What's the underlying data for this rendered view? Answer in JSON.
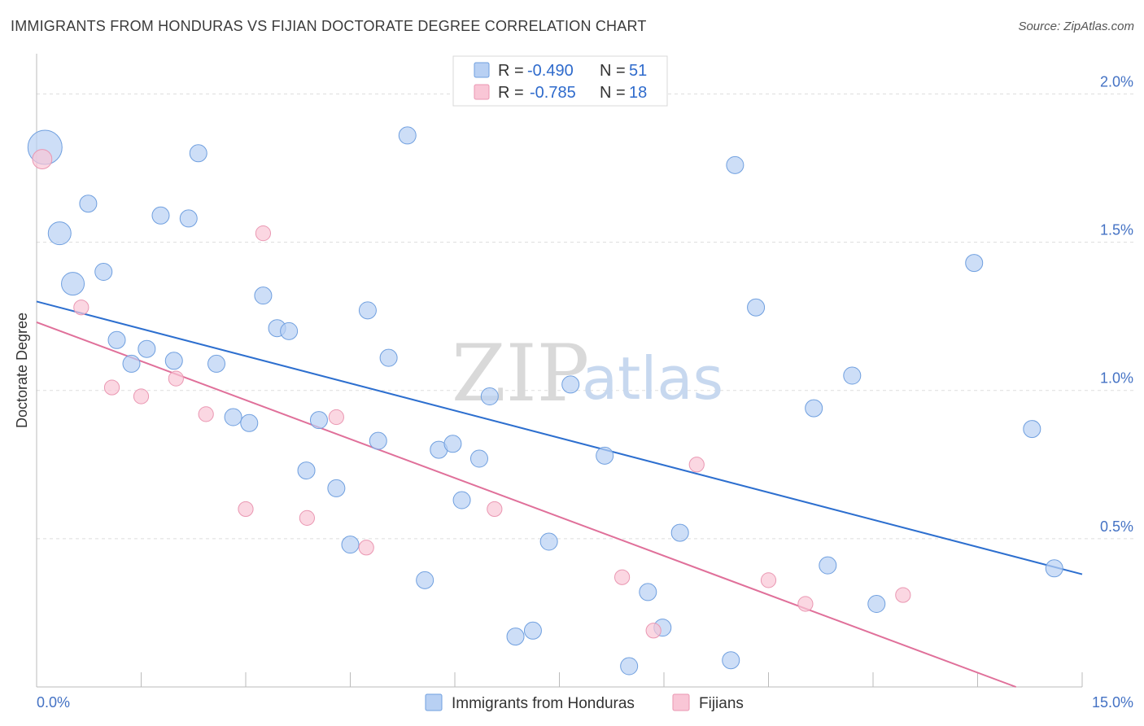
{
  "header": {
    "title": "IMMIGRANTS FROM HONDURAS VS FIJIAN DOCTORATE DEGREE CORRELATION CHART",
    "source": "Source: ZipAtlas.com"
  },
  "watermark": {
    "zip": "ZIP",
    "atlas": "atlas"
  },
  "colors": {
    "blue_fill": "#b8d0f3",
    "blue_stroke": "#6f9fdf",
    "blue_line": "#2d6fcf",
    "pink_fill": "#f9c6d6",
    "pink_stroke": "#ea97b2",
    "pink_line": "#e0709a",
    "grid": "#dddddd",
    "tick_text": "#4472c4"
  },
  "legend": {
    "items": [
      {
        "r_label": "R = ",
        "r_value": "-0.490",
        "n_label": "N = ",
        "n_value": "51",
        "color": "#b8d0f3"
      },
      {
        "r_label": "R = ",
        "r_value": "-0.785",
        "n_label": "N = ",
        "n_value": "18",
        "color": "#f9c6d6"
      }
    ]
  },
  "chart_data": {
    "type": "scatter",
    "title": "IMMIGRANTS FROM HONDURAS VS FIJIAN DOCTORATE DEGREE CORRELATION CHART",
    "xlabel": "",
    "ylabel": "Doctorate Degree",
    "xlim": [
      0,
      15
    ],
    "ylim": [
      0,
      2.1
    ],
    "x_tick_labels": [
      "0.0%",
      "15.0%"
    ],
    "y_ticks": [
      {
        "value": 0.5,
        "label": "0.5%"
      },
      {
        "value": 1.0,
        "label": "1.0%"
      },
      {
        "value": 1.5,
        "label": "1.5%"
      },
      {
        "value": 2.0,
        "label": "2.0%"
      }
    ],
    "x_minor_ticks": [
      0,
      1.5,
      3,
      4.5,
      6,
      7.5,
      9,
      10.5,
      12,
      13.5,
      15
    ],
    "grid": true,
    "legend_position": "top-center",
    "series": [
      {
        "name": "Immigrants from Honduras",
        "color": "#b8d0f3",
        "trend": {
          "x": [
            0,
            15
          ],
          "y": [
            1.3,
            0.38
          ]
        },
        "points": [
          {
            "x": 0.12,
            "y": 1.82,
            "s": 3
          },
          {
            "x": 0.33,
            "y": 1.53,
            "s": 2
          },
          {
            "x": 0.52,
            "y": 1.36,
            "s": 2
          },
          {
            "x": 0.74,
            "y": 1.63,
            "s": 1.5
          },
          {
            "x": 0.96,
            "y": 1.4,
            "s": 1.5
          },
          {
            "x": 1.15,
            "y": 1.17,
            "s": 1.5
          },
          {
            "x": 1.36,
            "y": 1.09,
            "s": 1.5
          },
          {
            "x": 1.58,
            "y": 1.14,
            "s": 1.5
          },
          {
            "x": 1.78,
            "y": 1.59,
            "s": 1.5
          },
          {
            "x": 1.97,
            "y": 1.1,
            "s": 1.5
          },
          {
            "x": 2.18,
            "y": 1.58,
            "s": 1.5
          },
          {
            "x": 2.32,
            "y": 1.8,
            "s": 1.5
          },
          {
            "x": 2.58,
            "y": 1.09,
            "s": 1.5
          },
          {
            "x": 2.82,
            "y": 0.91,
            "s": 1.5
          },
          {
            "x": 3.05,
            "y": 0.89,
            "s": 1.5
          },
          {
            "x": 3.25,
            "y": 1.32,
            "s": 1.5
          },
          {
            "x": 3.45,
            "y": 1.21,
            "s": 1.5
          },
          {
            "x": 3.62,
            "y": 1.2,
            "s": 1.5
          },
          {
            "x": 3.87,
            "y": 0.73,
            "s": 1.5
          },
          {
            "x": 4.05,
            "y": 0.9,
            "s": 1.5
          },
          {
            "x": 4.3,
            "y": 0.67,
            "s": 1.5
          },
          {
            "x": 4.5,
            "y": 0.48,
            "s": 1.5
          },
          {
            "x": 4.75,
            "y": 1.27,
            "s": 1.5
          },
          {
            "x": 4.9,
            "y": 0.83,
            "s": 1.5
          },
          {
            "x": 5.05,
            "y": 1.11,
            "s": 1.5
          },
          {
            "x": 5.32,
            "y": 1.86,
            "s": 1.5
          },
          {
            "x": 5.57,
            "y": 0.36,
            "s": 1.5
          },
          {
            "x": 5.77,
            "y": 0.8,
            "s": 1.5
          },
          {
            "x": 5.97,
            "y": 0.82,
            "s": 1.5
          },
          {
            "x": 6.1,
            "y": 0.63,
            "s": 1.5
          },
          {
            "x": 6.35,
            "y": 0.77,
            "s": 1.5
          },
          {
            "x": 6.5,
            "y": 0.98,
            "s": 1.5
          },
          {
            "x": 6.87,
            "y": 0.17,
            "s": 1.5
          },
          {
            "x": 7.12,
            "y": 0.19,
            "s": 1.5
          },
          {
            "x": 7.35,
            "y": 0.49,
            "s": 1.5
          },
          {
            "x": 7.66,
            "y": 1.02,
            "s": 1.5
          },
          {
            "x": 8.15,
            "y": 0.78,
            "s": 1.5
          },
          {
            "x": 8.5,
            "y": 0.07,
            "s": 1.5
          },
          {
            "x": 8.77,
            "y": 0.32,
            "s": 1.5
          },
          {
            "x": 8.98,
            "y": 0.2,
            "s": 1.5
          },
          {
            "x": 9.23,
            "y": 0.52,
            "s": 1.5
          },
          {
            "x": 9.96,
            "y": 0.09,
            "s": 1.5
          },
          {
            "x": 10.02,
            "y": 1.76,
            "s": 1.5
          },
          {
            "x": 10.32,
            "y": 1.28,
            "s": 1.5
          },
          {
            "x": 11.15,
            "y": 0.94,
            "s": 1.5
          },
          {
            "x": 11.35,
            "y": 0.41,
            "s": 1.5
          },
          {
            "x": 11.7,
            "y": 1.05,
            "s": 1.5
          },
          {
            "x": 12.05,
            "y": 0.28,
            "s": 1.5
          },
          {
            "x": 13.45,
            "y": 1.43,
            "s": 1.5
          },
          {
            "x": 14.28,
            "y": 0.87,
            "s": 1.5
          },
          {
            "x": 14.6,
            "y": 0.4,
            "s": 1.5
          }
        ]
      },
      {
        "name": "Fijians",
        "color": "#f9c6d6",
        "trend": {
          "x": [
            0,
            14.05
          ],
          "y": [
            1.23,
            0.0
          ]
        },
        "points": [
          {
            "x": 0.08,
            "y": 1.78,
            "s": 1.7
          },
          {
            "x": 0.64,
            "y": 1.28,
            "s": 1.3
          },
          {
            "x": 1.08,
            "y": 1.01,
            "s": 1.3
          },
          {
            "x": 1.5,
            "y": 0.98,
            "s": 1.3
          },
          {
            "x": 2.0,
            "y": 1.04,
            "s": 1.3
          },
          {
            "x": 2.43,
            "y": 0.92,
            "s": 1.3
          },
          {
            "x": 3.0,
            "y": 0.6,
            "s": 1.3
          },
          {
            "x": 3.25,
            "y": 1.53,
            "s": 1.3
          },
          {
            "x": 3.88,
            "y": 0.57,
            "s": 1.3
          },
          {
            "x": 4.3,
            "y": 0.91,
            "s": 1.3
          },
          {
            "x": 4.73,
            "y": 0.47,
            "s": 1.3
          },
          {
            "x": 6.57,
            "y": 0.6,
            "s": 1.3
          },
          {
            "x": 8.4,
            "y": 0.37,
            "s": 1.3
          },
          {
            "x": 8.85,
            "y": 0.19,
            "s": 1.3
          },
          {
            "x": 9.47,
            "y": 0.75,
            "s": 1.3
          },
          {
            "x": 10.5,
            "y": 0.36,
            "s": 1.3
          },
          {
            "x": 11.03,
            "y": 0.28,
            "s": 1.3
          },
          {
            "x": 12.43,
            "y": 0.31,
            "s": 1.3
          }
        ]
      }
    ]
  }
}
